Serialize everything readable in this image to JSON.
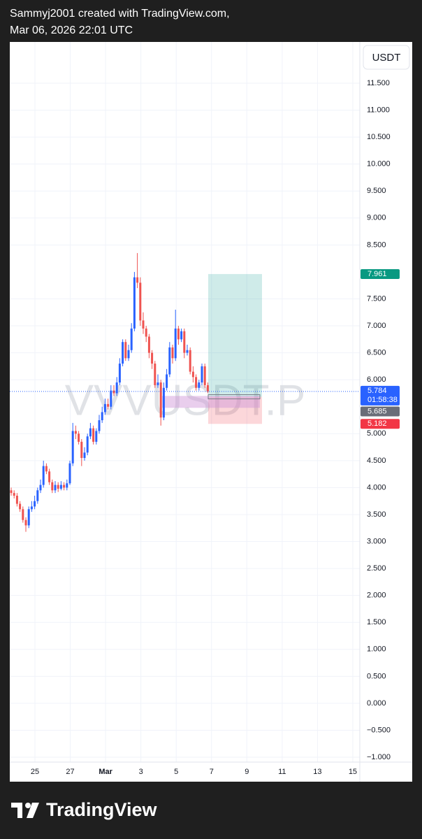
{
  "header": {
    "line1": "Sammyj2001 created with TradingView.com,",
    "line2": "Mar 06, 2026 22:01 UTC"
  },
  "currency_button": "USDT",
  "footer": "TradingView",
  "chart_data": {
    "type": "candlestick",
    "symbol": "VVVUSDT.P",
    "up_color": "#2962ff",
    "down_color": "#ef5350",
    "x_labels": [
      "25",
      "27",
      "Mar",
      "3",
      "5",
      "7",
      "9",
      "11",
      "13",
      "15"
    ],
    "open": [
      3.95,
      3.9,
      3.85,
      3.7,
      3.6,
      3.4,
      3.3,
      3.6,
      3.65,
      3.75,
      3.95,
      4.05,
      4.4,
      4.3,
      4.1,
      3.95,
      4.05,
      3.98,
      4.05,
      4.0,
      4.08,
      4.45,
      5.05,
      5.0,
      4.85,
      4.55,
      4.65,
      4.95,
      5.1,
      4.85,
      5.05,
      5.25,
      5.4,
      5.55,
      5.5,
      5.8,
      5.75,
      5.95,
      6.3,
      6.7,
      6.4,
      6.55,
      6.95,
      7.9,
      7.8,
      7.1,
      6.95,
      6.8,
      6.5,
      6.3,
      5.9,
      5.95,
      5.3,
      5.85,
      6.1,
      6.6,
      6.4,
      6.95,
      6.75,
      6.9,
      6.5,
      6.55,
      6.15,
      6.05,
      5.85,
      5.95,
      6.25,
      5.9
    ],
    "high": [
      4.0,
      3.95,
      3.9,
      3.75,
      3.65,
      3.45,
      3.65,
      3.75,
      3.85,
      4.0,
      4.15,
      4.5,
      4.45,
      4.35,
      4.15,
      4.12,
      4.1,
      4.12,
      4.1,
      4.15,
      4.5,
      5.2,
      5.15,
      5.05,
      4.9,
      4.75,
      5.0,
      5.2,
      5.15,
      5.1,
      5.35,
      5.5,
      5.65,
      5.65,
      5.9,
      5.9,
      6.05,
      6.4,
      6.75,
      6.75,
      6.65,
      7.05,
      8.0,
      8.35,
      7.9,
      7.25,
      7.0,
      6.85,
      6.55,
      6.35,
      6.1,
      6.0,
      5.95,
      6.2,
      6.7,
      6.65,
      7.3,
      7.0,
      6.95,
      6.95,
      6.65,
      6.6,
      6.25,
      6.1,
      6.0,
      6.3,
      6.3,
      5.95
    ],
    "low": [
      3.85,
      3.8,
      3.65,
      3.55,
      3.35,
      3.18,
      3.25,
      3.55,
      3.6,
      3.7,
      3.9,
      4.0,
      4.25,
      4.05,
      3.9,
      3.9,
      3.92,
      3.95,
      3.95,
      3.95,
      4.05,
      4.4,
      4.9,
      4.8,
      4.4,
      4.5,
      4.6,
      4.9,
      4.8,
      4.8,
      5.0,
      5.2,
      5.35,
      5.45,
      5.45,
      5.7,
      5.7,
      5.9,
      6.25,
      6.35,
      6.35,
      6.5,
      6.9,
      7.7,
      7.0,
      6.85,
      6.7,
      6.4,
      6.2,
      5.85,
      5.85,
      5.15,
      5.25,
      5.8,
      6.05,
      6.3,
      6.35,
      6.65,
      6.7,
      6.4,
      6.45,
      6.1,
      5.95,
      5.8,
      5.8,
      5.9,
      5.85,
      5.75
    ],
    "close": [
      3.9,
      3.85,
      3.7,
      3.6,
      3.4,
      3.3,
      3.6,
      3.65,
      3.75,
      3.95,
      4.05,
      4.4,
      4.3,
      4.1,
      3.95,
      4.05,
      3.98,
      4.05,
      4.0,
      4.08,
      4.45,
      5.05,
      5.0,
      4.85,
      4.55,
      4.65,
      4.95,
      5.1,
      4.85,
      5.05,
      5.25,
      5.4,
      5.55,
      5.5,
      5.8,
      5.75,
      5.95,
      6.3,
      6.7,
      6.4,
      6.55,
      6.95,
      7.9,
      7.8,
      7.1,
      6.95,
      6.8,
      6.5,
      6.3,
      5.9,
      5.95,
      5.3,
      5.85,
      6.1,
      6.6,
      6.4,
      6.95,
      6.75,
      6.9,
      6.5,
      6.55,
      6.15,
      6.05,
      5.85,
      5.95,
      6.25,
      5.9,
      5.784
    ],
    "last_price": 5.784,
    "countdown": "01:58:38",
    "position": {
      "target": 7.961,
      "entry": 5.685,
      "stop": 5.182
    },
    "zone": {
      "top": 5.7,
      "bottom": 5.48
    },
    "ylim": [
      -1.09,
      12.265
    ],
    "yticks": [
      {
        "value": 11.5,
        "label": "11.500"
      },
      {
        "value": 11,
        "label": "11.000"
      },
      {
        "value": 10.5,
        "label": "10.500"
      },
      {
        "value": 10,
        "label": "10.000"
      },
      {
        "value": 9.5,
        "label": "9.500"
      },
      {
        "value": 9,
        "label": "9.000"
      },
      {
        "value": 8.5,
        "label": "8.500"
      },
      {
        "value": 7.5,
        "label": "7.500"
      },
      {
        "value": 7,
        "label": "7.000"
      },
      {
        "value": 6.5,
        "label": "6.500"
      },
      {
        "value": 6,
        "label": "6.000"
      },
      {
        "value": 5,
        "label": "5.000"
      },
      {
        "value": 4.5,
        "label": "4.500"
      },
      {
        "value": 4,
        "label": "4.000"
      },
      {
        "value": 3.5,
        "label": "3.500"
      },
      {
        "value": 3,
        "label": "3.000"
      },
      {
        "value": 2.5,
        "label": "2.500"
      },
      {
        "value": 2,
        "label": "2.000"
      },
      {
        "value": 1.5,
        "label": "1.500"
      },
      {
        "value": 1,
        "label": "1.000"
      },
      {
        "value": 0.5,
        "label": "0.500"
      },
      {
        "value": 0,
        "label": "0.000"
      },
      {
        "value": -0.5,
        "label": "−0.500"
      },
      {
        "value": -1,
        "label": "−1.000"
      }
    ],
    "grid": true
  }
}
